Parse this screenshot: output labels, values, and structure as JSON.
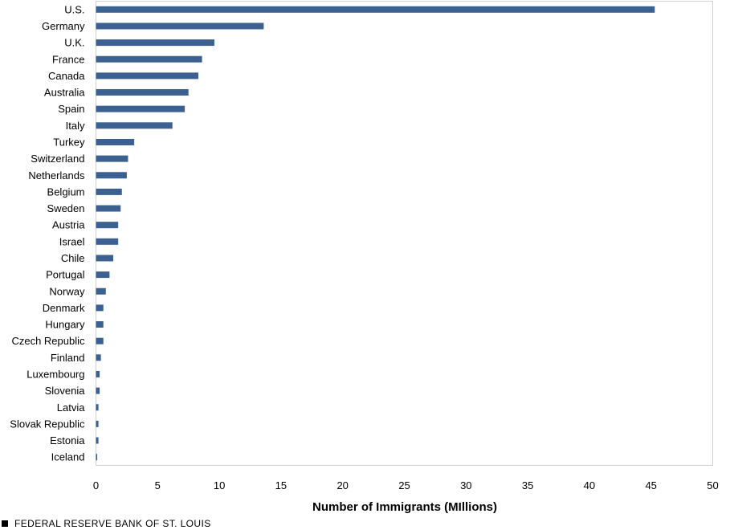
{
  "chart_data": {
    "type": "bar",
    "orientation": "horizontal",
    "categories": [
      "U.S.",
      "Germany",
      "U.K.",
      "France",
      "Canada",
      "Australia",
      "Spain",
      "Italy",
      "Turkey",
      "Switzerland",
      "Netherlands",
      "Belgium",
      "Sweden",
      "Austria",
      "Israel",
      "Chile",
      "Portugal",
      "Norway",
      "Denmark",
      "Hungary",
      "Czech Republic",
      "Finland",
      "Luxembourg",
      "Slovenia",
      "Latvia",
      "Slovak Republic",
      "Estonia",
      "Iceland"
    ],
    "values": [
      45.3,
      13.6,
      9.6,
      8.6,
      8.3,
      7.5,
      7.2,
      6.2,
      3.1,
      2.6,
      2.5,
      2.1,
      2.0,
      1.8,
      1.8,
      1.4,
      1.1,
      0.8,
      0.6,
      0.6,
      0.6,
      0.4,
      0.3,
      0.3,
      0.2,
      0.2,
      0.2,
      0.1
    ],
    "xlabel": "Number of Immigrants (MIllions)",
    "xlim": [
      0,
      50
    ],
    "xticks": [
      "0",
      "5",
      "10",
      "15",
      "20",
      "25",
      "30",
      "35",
      "40",
      "45",
      "50"
    ],
    "bar_color": "#3c6191",
    "grid": false
  },
  "footer": {
    "text": "FEDERAL RESERVE BANK OF ST. LOUIS"
  }
}
